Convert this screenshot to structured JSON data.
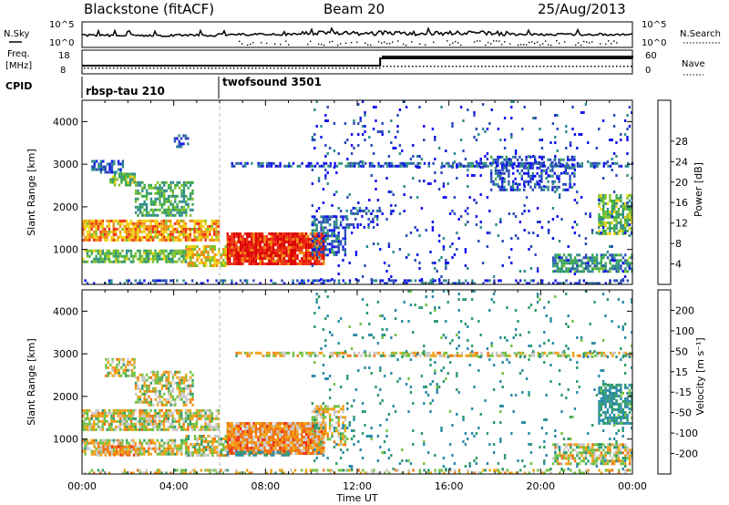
{
  "header": {
    "station": "Blackstone (fitACF)",
    "beam": "Beam 20",
    "date": "25/Aug/2013"
  },
  "status_panels": {
    "nsky_label": "N.Sky",
    "nsky_ticks": [
      "10^5",
      "10^0"
    ],
    "nsearch_label": "N.Search",
    "freq_label_line1": "Freq.",
    "freq_label_line2": "[MHz]",
    "freq_ticks": [
      "18",
      "8"
    ],
    "nave_label": "Nave",
    "nave_ticks": [
      "60",
      "0"
    ],
    "cpid_label": "CPID",
    "cpid_segments": [
      {
        "name": "rbsp-tau 210",
        "start_hour": 0
      },
      {
        "name": "twofsound 3501",
        "start_hour": 6
      }
    ]
  },
  "chart_data": [
    {
      "type": "heatmap",
      "name": "power",
      "xlabel": "Time UT",
      "ylabel": "Slant Range [km]",
      "xlim": [
        0,
        24
      ],
      "ylim": [
        180,
        4500
      ],
      "xticks": [
        "00:00",
        "04:00",
        "08:00",
        "12:00",
        "16:00",
        "20:00",
        "00:00"
      ],
      "yticks": [
        1000,
        2000,
        3000,
        4000
      ],
      "colorbar": {
        "label": "Power [dB]",
        "ticks": [
          4,
          8,
          12,
          16,
          20,
          24,
          28
        ],
        "range": [
          0,
          32
        ],
        "colors": [
          "#1010ee",
          "#2a4ab8",
          "#2e8a8a",
          "#3aa84a",
          "#7cc028",
          "#f0d010",
          "#f08a10",
          "#ee3010",
          "#dd0000"
        ]
      },
      "regions": [
        {
          "t": [
            0.0,
            6.0
          ],
          "r": [
            1250,
            1700
          ],
          "level": 22,
          "density": 0.8
        },
        {
          "t": [
            0.0,
            4.5
          ],
          "r": [
            700,
            1000
          ],
          "level": 14,
          "density": 0.7
        },
        {
          "t": [
            0.4,
            1.8
          ],
          "r": [
            2800,
            3100
          ],
          "level": 6,
          "density": 0.6
        },
        {
          "t": [
            1.2,
            2.3
          ],
          "r": [
            2500,
            2800
          ],
          "level": 14,
          "density": 0.7
        },
        {
          "t": [
            2.3,
            4.8
          ],
          "r": [
            1800,
            2600
          ],
          "level": 12,
          "density": 0.6
        },
        {
          "t": [
            4.0,
            4.6
          ],
          "r": [
            3400,
            3700
          ],
          "level": 6,
          "density": 0.5
        },
        {
          "t": [
            6.3,
            10.5
          ],
          "r": [
            650,
            1400
          ],
          "level": 28,
          "density": 0.95
        },
        {
          "t": [
            4.5,
            6.3
          ],
          "r": [
            650,
            1100
          ],
          "level": 20,
          "density": 0.7
        },
        {
          "t": [
            10.0,
            11.5
          ],
          "r": [
            900,
            1800
          ],
          "level": 6,
          "density": 0.5
        },
        {
          "t": [
            11.5,
            13.0
          ],
          "r": [
            1500,
            2000
          ],
          "level": 5,
          "density": 0.4
        },
        {
          "t": [
            6.5,
            24.0
          ],
          "r": [
            2950,
            3050
          ],
          "level": 6,
          "density": 0.6
        },
        {
          "t": [
            17.8,
            21.5
          ],
          "r": [
            2400,
            3200
          ],
          "level": 6,
          "density": 0.4
        },
        {
          "t": [
            20.5,
            24.0
          ],
          "r": [
            500,
            900
          ],
          "level": 10,
          "density": 0.7
        },
        {
          "t": [
            22.5,
            24.0
          ],
          "r": [
            1400,
            2300
          ],
          "level": 14,
          "density": 0.7
        },
        {
          "t": [
            0.0,
            24.0
          ],
          "r": [
            180,
            300
          ],
          "level": 5,
          "density": 0.35
        },
        {
          "t": [
            10.0,
            24.0
          ],
          "r": [
            300,
            4500
          ],
          "level": 4,
          "density": 0.05
        }
      ]
    },
    {
      "type": "heatmap",
      "name": "velocity",
      "xlabel": "Time UT",
      "ylabel": "Slant Range [km]",
      "xlim": [
        0,
        24
      ],
      "ylim": [
        180,
        4500
      ],
      "xticks": [
        "00:00",
        "04:00",
        "08:00",
        "12:00",
        "16:00",
        "20:00",
        "00:00"
      ],
      "yticks": [
        1000,
        2000,
        3000,
        4000
      ],
      "colorbar": {
        "label": "Velocity [m s⁻¹]",
        "ticks": [
          200,
          100,
          50,
          15,
          -15,
          -50,
          -100,
          -200
        ],
        "colors": [
          "#1a2ad0",
          "#2a8aa8",
          "#2e9a6a",
          "#70c040",
          "#c8c8c8",
          "#f0a010",
          "#f07010",
          "#ee3010",
          "#dd0000"
        ]
      },
      "regions": [
        {
          "t": [
            0.0,
            6.0
          ],
          "r": [
            1250,
            1700
          ],
          "value": 0,
          "density": 0.8
        },
        {
          "t": [
            0.0,
            4.5
          ],
          "r": [
            650,
            1000
          ],
          "value": 0,
          "density": 0.7
        },
        {
          "t": [
            0.5,
            2.5
          ],
          "r": [
            650,
            850
          ],
          "value": -50,
          "density": 0.7
        },
        {
          "t": [
            1.0,
            2.3
          ],
          "r": [
            2500,
            2900
          ],
          "value": 0,
          "density": 0.6
        },
        {
          "t": [
            2.3,
            4.8
          ],
          "r": [
            1800,
            2600
          ],
          "value": 0,
          "density": 0.6
        },
        {
          "t": [
            6.3,
            10.5
          ],
          "r": [
            650,
            1400
          ],
          "value": -50,
          "density": 0.95
        },
        {
          "t": [
            4.5,
            6.3
          ],
          "r": [
            650,
            1100
          ],
          "value": 0,
          "density": 0.7
        },
        {
          "t": [
            6.3,
            9.0
          ],
          "r": [
            600,
            720
          ],
          "value": 100,
          "density": 0.6
        },
        {
          "t": [
            10.0,
            11.5
          ],
          "r": [
            900,
            1800
          ],
          "value": 0,
          "density": 0.5
        },
        {
          "t": [
            6.5,
            24.0
          ],
          "r": [
            2950,
            3050
          ],
          "value": 0,
          "density": 0.6
        },
        {
          "t": [
            20.5,
            24.0
          ],
          "r": [
            450,
            900
          ],
          "value": 0,
          "density": 0.7
        },
        {
          "t": [
            22.5,
            24.0
          ],
          "r": [
            1400,
            2300
          ],
          "value": 100,
          "density": 0.7
        },
        {
          "t": [
            0.0,
            24.0
          ],
          "r": [
            180,
            300
          ],
          "value": 0,
          "density": 0.35
        },
        {
          "t": [
            10.0,
            24.0
          ],
          "r": [
            300,
            4500
          ],
          "value": 100,
          "density": 0.05
        }
      ]
    }
  ]
}
